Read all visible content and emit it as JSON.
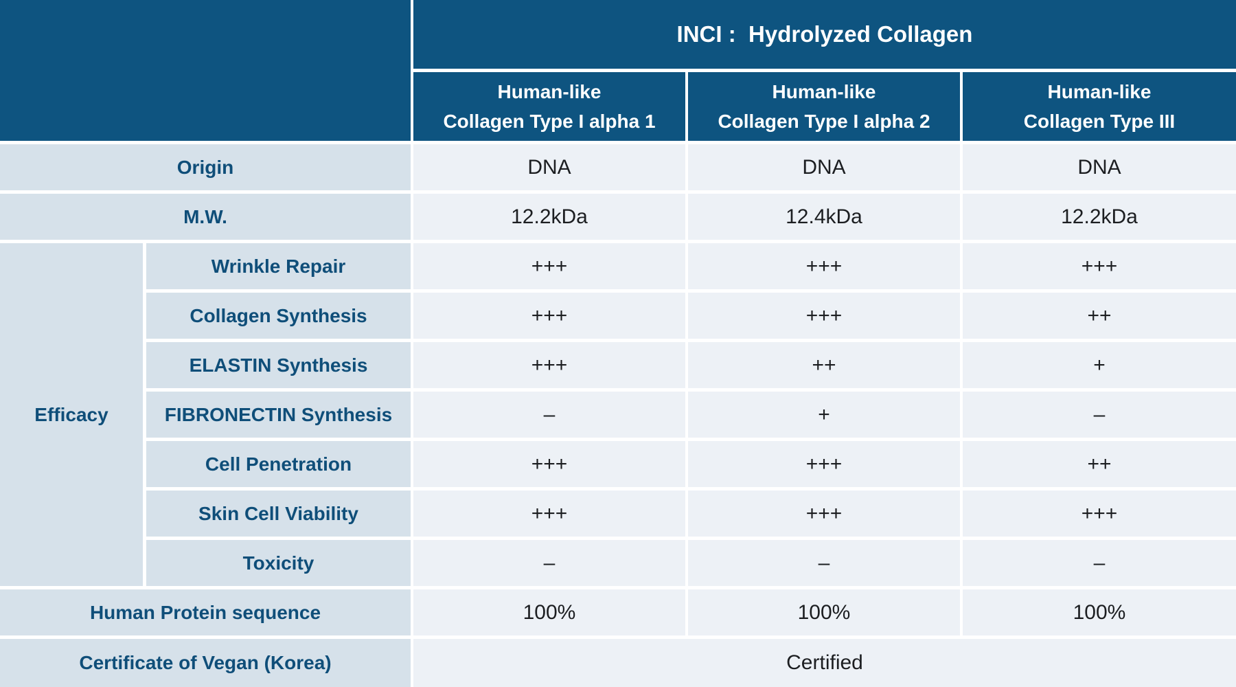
{
  "header": {
    "inci_title": "INCI :  Hydrolyzed Collagen"
  },
  "columns": [
    {
      "line1": "Human-like",
      "line2": "Collagen Type I alpha 1"
    },
    {
      "line1": "Human-like",
      "line2": "Collagen Type I alpha 2"
    },
    {
      "line1": "Human-like",
      "line2": "Collagen Type III"
    }
  ],
  "rows": {
    "origin": {
      "label": "Origin",
      "values": [
        "DNA",
        "DNA",
        "DNA"
      ]
    },
    "mw": {
      "label": "M.W.",
      "values": [
        "12.2kDa",
        "12.4kDa",
        "12.2kDa"
      ]
    },
    "efficacy": {
      "group_label": "Efficacy",
      "items": [
        {
          "label": "Wrinkle Repair",
          "values": [
            "+++",
            "+++",
            "+++"
          ]
        },
        {
          "label": "Collagen Synthesis",
          "values": [
            "+++",
            "+++",
            "++"
          ]
        },
        {
          "label": "ELASTIN Synthesis",
          "values": [
            "+++",
            "++",
            "+"
          ]
        },
        {
          "label": "FIBRONECTIN Synthesis",
          "values": [
            "–",
            "+",
            "–"
          ]
        },
        {
          "label": "Cell Penetration",
          "values": [
            "+++",
            "+++",
            "++"
          ]
        },
        {
          "label": "Skin Cell Viability",
          "values": [
            "+++",
            "+++",
            "+++"
          ]
        },
        {
          "label": "Toxicity",
          "values": [
            "–",
            "–",
            "–"
          ]
        }
      ]
    },
    "human_protein_sequence": {
      "label": "Human Protein sequence",
      "values": [
        "100%",
        "100%",
        "100%"
      ]
    },
    "vegan_certificate": {
      "label": "Certificate of Vegan (Korea)",
      "value": "Certified"
    }
  },
  "colors": {
    "header_bg": "#0e5480",
    "label_cell_bg": "#d6e1ea",
    "value_cell_bg": "#edf1f6",
    "header_text": "#ffffff",
    "label_text": "#0f4e79",
    "value_text": "#1c1e21",
    "divider": "#ffffff"
  },
  "chart_data": {
    "type": "table",
    "title": "INCI :  Hydrolyzed Collagen",
    "columns": [
      "Human-like Collagen Type I alpha 1",
      "Human-like Collagen Type I alpha 2",
      "Human-like Collagen Type III"
    ],
    "rows": [
      {
        "group": "",
        "label": "Origin",
        "values": [
          "DNA",
          "DNA",
          "DNA"
        ]
      },
      {
        "group": "",
        "label": "M.W.",
        "values": [
          "12.2kDa",
          "12.4kDa",
          "12.2kDa"
        ]
      },
      {
        "group": "Efficacy",
        "label": "Wrinkle Repair",
        "values": [
          "+++",
          "+++",
          "+++"
        ]
      },
      {
        "group": "Efficacy",
        "label": "Collagen Synthesis",
        "values": [
          "+++",
          "+++",
          "++"
        ]
      },
      {
        "group": "Efficacy",
        "label": "ELASTIN Synthesis",
        "values": [
          "+++",
          "++",
          "+"
        ]
      },
      {
        "group": "Efficacy",
        "label": "FIBRONECTIN Synthesis",
        "values": [
          "–",
          "+",
          "–"
        ]
      },
      {
        "group": "Efficacy",
        "label": "Cell Penetration",
        "values": [
          "+++",
          "+++",
          "++"
        ]
      },
      {
        "group": "Efficacy",
        "label": "Skin Cell Viability",
        "values": [
          "+++",
          "+++",
          "+++"
        ]
      },
      {
        "group": "Efficacy",
        "label": "Toxicity",
        "values": [
          "–",
          "–",
          "–"
        ]
      },
      {
        "group": "",
        "label": "Human Protein sequence",
        "values": [
          "100%",
          "100%",
          "100%"
        ]
      },
      {
        "group": "",
        "label": "Certificate of Vegan (Korea)",
        "values": [
          "Certified",
          "Certified",
          "Certified"
        ],
        "merged": true
      }
    ]
  }
}
